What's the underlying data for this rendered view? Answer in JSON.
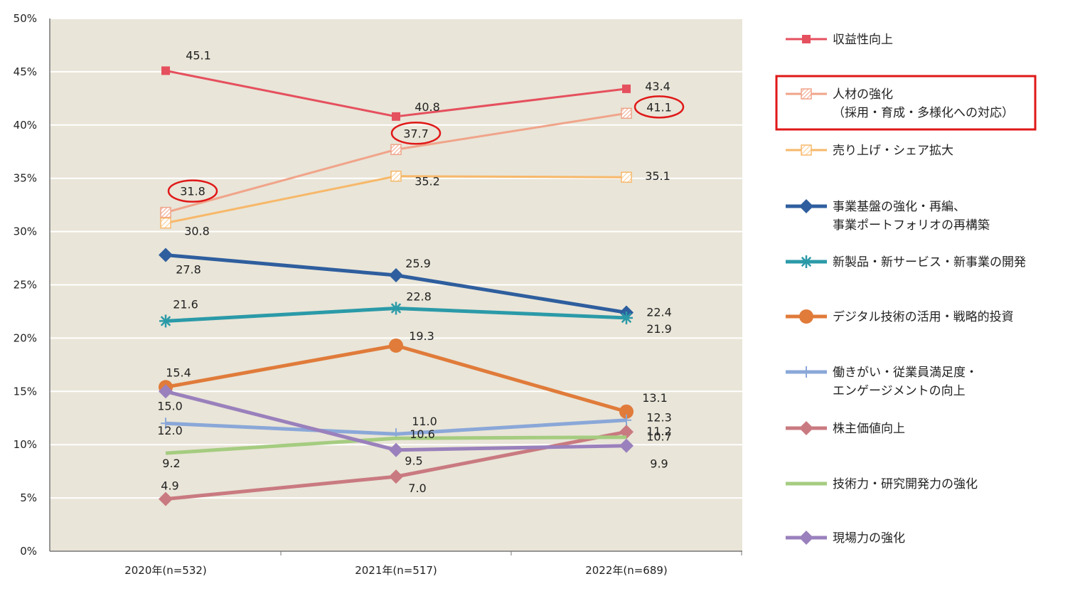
{
  "chart_data": {
    "type": "line",
    "categories": [
      "2020年(n=532)",
      "2021年(n=517)",
      "2022年(n=689)"
    ],
    "ylim": [
      0,
      50
    ],
    "yticks": [
      "0%",
      "5%",
      "10%",
      "15%",
      "20%",
      "25%",
      "30%",
      "35%",
      "40%",
      "45%",
      "50%"
    ],
    "ytick_values": [
      0,
      5,
      10,
      15,
      20,
      25,
      30,
      35,
      40,
      45,
      50
    ],
    "grid": true,
    "legend_position": "right",
    "series": [
      {
        "name": "収益性向上",
        "legend_lines": [
          "収益性向上"
        ],
        "values": [
          45.1,
          40.8,
          43.4
        ],
        "labels": [
          "45.1",
          "40.8",
          "43.4"
        ],
        "color": "#e5505e",
        "marker": "square",
        "thick": false
      },
      {
        "name": "人材の強化（採用・育成・多様化への対応）",
        "legend_lines": [
          "人材の強化",
          "（採用・育成・多様化への対応）"
        ],
        "values": [
          31.8,
          37.7,
          41.1
        ],
        "labels": [
          "31.8",
          "37.7",
          "41.1"
        ],
        "color": "#f0a48a",
        "marker": "hatched-square",
        "thick": false,
        "highlighted": true
      },
      {
        "name": "売り上げ・シェア拡大",
        "legend_lines": [
          "売り上げ・シェア拡大"
        ],
        "values": [
          30.8,
          35.2,
          35.1
        ],
        "labels": [
          "30.8",
          "35.2",
          "35.1"
        ],
        "color": "#f7b86a",
        "marker": "hatched-square",
        "thick": false
      },
      {
        "name": "事業基盤の強化・再編、事業ポートフォリオの再構築",
        "legend_lines": [
          "事業基盤の強化・再編、",
          "事業ポートフォリオの再構築"
        ],
        "values": [
          27.8,
          25.9,
          22.4
        ],
        "labels": [
          "27.8",
          "25.9",
          "22.4"
        ],
        "color": "#2e5e9e",
        "marker": "diamond",
        "thick": true
      },
      {
        "name": "新製品・新サービス・新事業の開発",
        "legend_lines": [
          "新製品・新サービス・新事業の開発"
        ],
        "values": [
          21.6,
          22.8,
          21.9
        ],
        "labels": [
          "21.6",
          "22.8",
          "21.9"
        ],
        "color": "#2b9aa8",
        "marker": "asterisk",
        "thick": true
      },
      {
        "name": "デジタル技術の活用・戦略的投資",
        "legend_lines": [
          "デジタル技術の活用・戦略的投資"
        ],
        "values": [
          15.4,
          19.3,
          13.1
        ],
        "labels": [
          "15.4",
          "19.3",
          "13.1"
        ],
        "color": "#e07b3a",
        "marker": "circle",
        "thick": true
      },
      {
        "name": "働きがい・従業員満足度・エンゲージメントの向上",
        "legend_lines": [
          "働きがい・従業員満足度・",
          "エンゲージメントの向上"
        ],
        "values": [
          12.0,
          11.0,
          12.3
        ],
        "labels": [
          "12.0",
          "11.0",
          "12.3"
        ],
        "color": "#8aa7d8",
        "marker": "plus",
        "thick": true
      },
      {
        "name": "株主価値向上",
        "legend_lines": [
          "株主価値向上"
        ],
        "values": [
          4.9,
          7.0,
          11.2
        ],
        "labels": [
          "4.9",
          "7.0",
          "11.2"
        ],
        "color": "#c97a80",
        "marker": "diamond",
        "thick": true
      },
      {
        "name": "技術力・研究開発力の強化",
        "legend_lines": [
          "技術力・研究開発力の強化"
        ],
        "values": [
          9.2,
          10.6,
          10.7
        ],
        "labels": [
          "9.2",
          "10.6",
          "10.7"
        ],
        "color": "#a5cc80",
        "marker": "none",
        "thick": true
      },
      {
        "name": "現場力の強化",
        "legend_lines": [
          "現場力の強化"
        ],
        "values": [
          15.0,
          9.5,
          9.9
        ],
        "labels": [
          "15.0",
          "9.5",
          "9.9"
        ],
        "color": "#9a80bc",
        "marker": "diamond",
        "thick": true
      }
    ],
    "highlight_color": "#e01818",
    "plot_bg": "#e9e5d8"
  }
}
